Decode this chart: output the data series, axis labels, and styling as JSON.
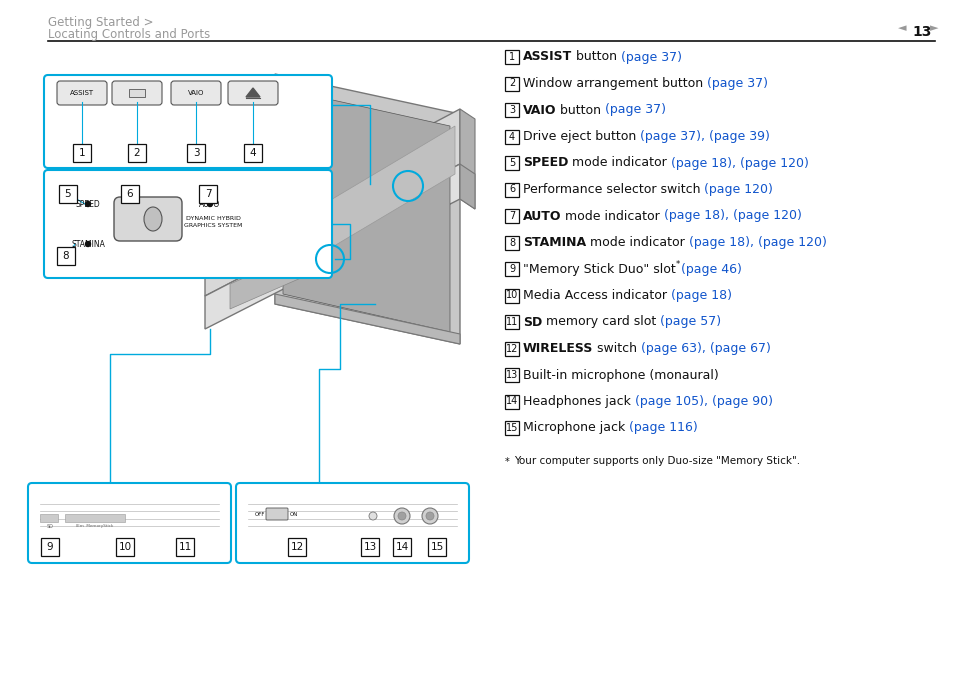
{
  "bg_color": "#ffffff",
  "header_text1": "Getting Started >",
  "header_text2": "Locating Controls and Ports",
  "page_num": "13",
  "header_color": "#999999",
  "page_num_color": "#333333",
  "line_color": "#222222",
  "blue_color": "#1155cc",
  "black_color": "#111111",
  "diagram_blue": "#00aadd",
  "items": [
    {
      "num": "1",
      "bold": "ASSIST",
      "normal": " button ",
      "link": "(page 37)"
    },
    {
      "num": "2",
      "bold": "",
      "normal": "Window arrangement button ",
      "link": "(page 37)"
    },
    {
      "num": "3",
      "bold": "VAIO",
      "normal": " button ",
      "link": "(page 37)"
    },
    {
      "num": "4",
      "bold": "",
      "normal": "Drive eject button ",
      "link": "(page 37), (page 39)"
    },
    {
      "num": "5",
      "bold": "SPEED",
      "normal": " mode indicator ",
      "link": "(page 18), (page 120)"
    },
    {
      "num": "6",
      "bold": "",
      "normal": "Performance selector switch ",
      "link": "(page 120)"
    },
    {
      "num": "7",
      "bold": "AUTO",
      "normal": " mode indicator ",
      "link": "(page 18), (page 120)"
    },
    {
      "num": "8",
      "bold": "STAMINA",
      "normal": " mode indicator ",
      "link": "(page 18), (page 120)"
    },
    {
      "num": "9",
      "bold": "",
      "normal": "\"Memory Stick Duo\" slot",
      "link": "(page 46)",
      "superscript": "*"
    },
    {
      "num": "10",
      "bold": "",
      "normal": "Media Access indicator ",
      "link": "(page 18)"
    },
    {
      "num": "11",
      "bold": "SD",
      "normal": " memory card slot ",
      "link": "(page 57)"
    },
    {
      "num": "12",
      "bold": "WIRELESS",
      "normal": " switch ",
      "link": "(page 63), (page 67)"
    },
    {
      "num": "13",
      "bold": "",
      "normal": "Built-in microphone (monaural)",
      "link": ""
    },
    {
      "num": "14",
      "bold": "",
      "normal": "Headphones jack ",
      "link": "(page 105), (page 90)"
    },
    {
      "num": "15",
      "bold": "",
      "normal": "Microphone jack ",
      "link": "(page 116)"
    }
  ],
  "footnote": "Your computer supports only Duo-size \"Memory Stick\"."
}
